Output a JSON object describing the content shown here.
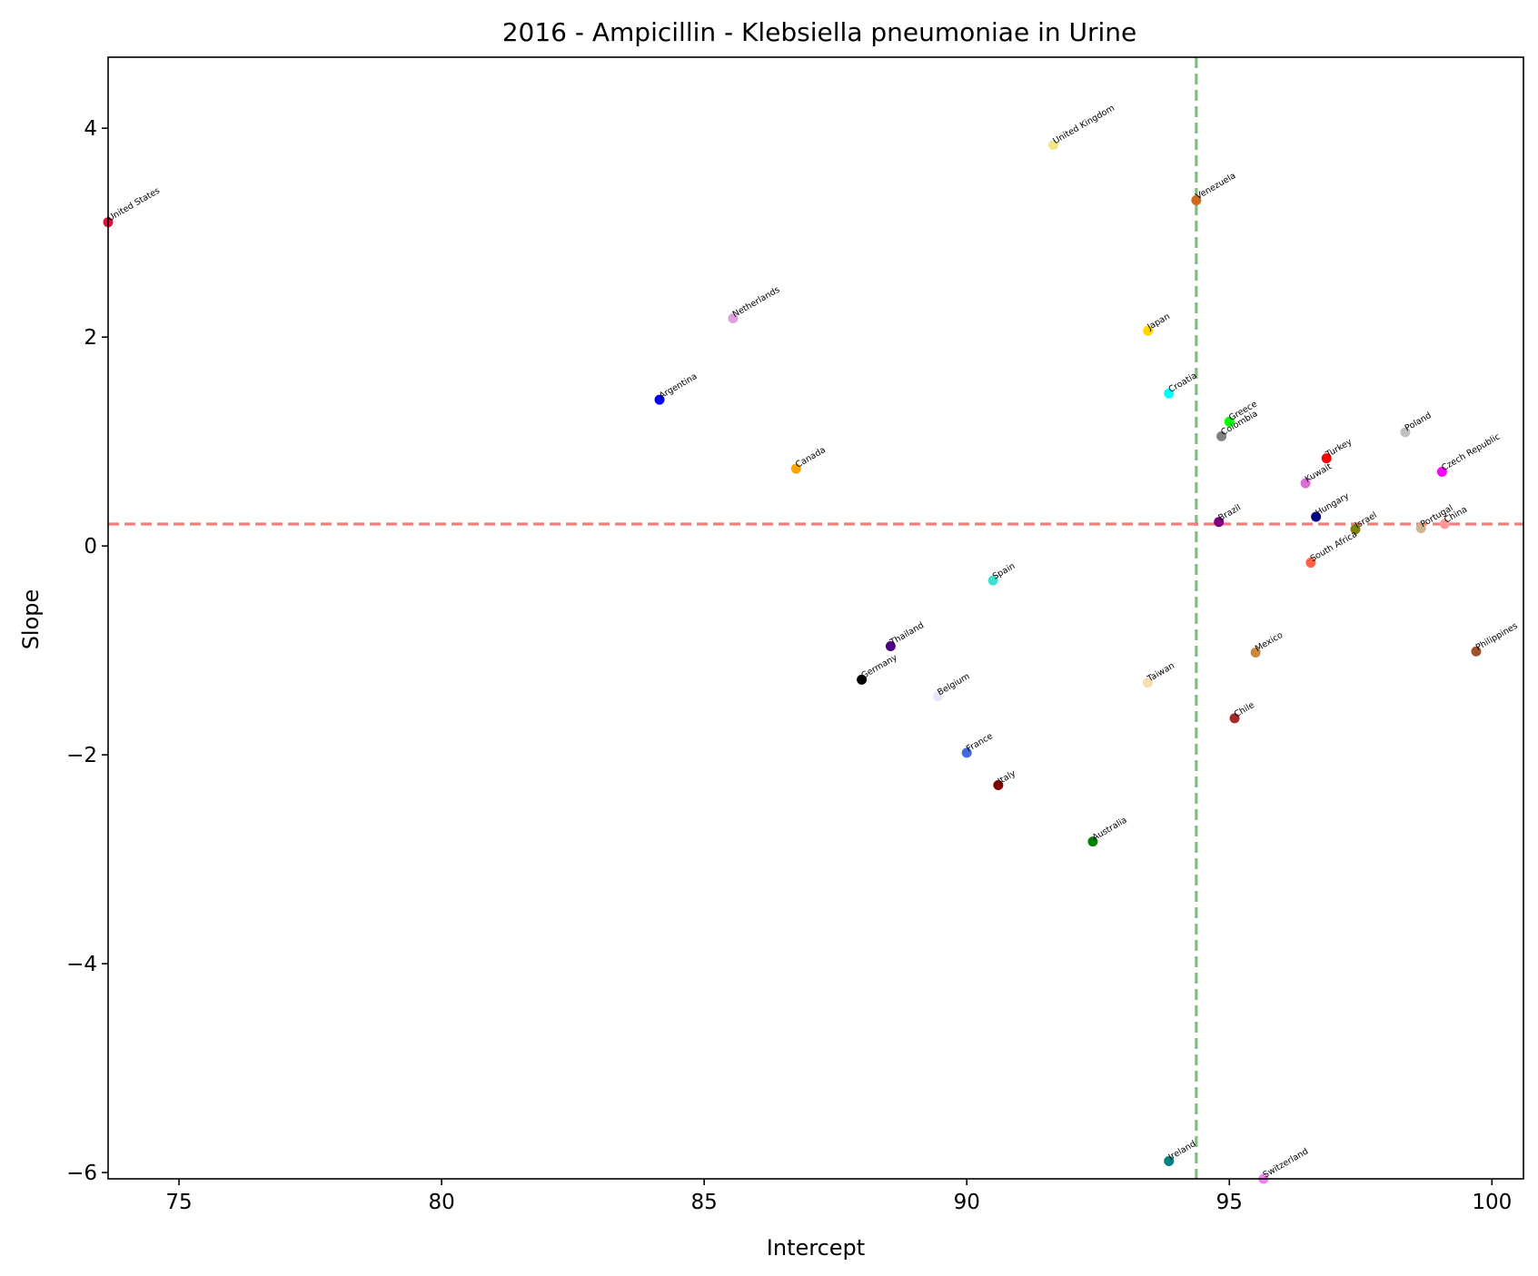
{
  "chart_data": {
    "type": "scatter",
    "title": "2016 - Ampicillin - Klebsiella pneumoniae in Urine",
    "xlabel": "Intercept",
    "ylabel": "Slope",
    "xlim": [
      73.65,
      100.6
    ],
    "ylim": [
      -6.06,
      4.68
    ],
    "x_ticks": [
      75,
      80,
      85,
      90,
      95,
      100
    ],
    "x_tick_labels": [
      "75",
      "80",
      "85",
      "90",
      "95",
      "100"
    ],
    "y_ticks": [
      -6,
      -4,
      -2,
      0,
      2,
      4
    ],
    "y_tick_labels": [
      "−6",
      "−4",
      "−2",
      "0",
      "2",
      "4"
    ],
    "grid": false,
    "reference_lines": {
      "vertical_x": 94.37,
      "vertical_color": "#7fbf7f",
      "horizontal_y": 0.21,
      "horizontal_color": "#f08080"
    },
    "points": [
      {
        "label": "United States",
        "x": 73.65,
        "y": 3.1,
        "color": "#dc143c"
      },
      {
        "label": "United Kingdom",
        "x": 91.65,
        "y": 3.84,
        "color": "#f0e68c"
      },
      {
        "label": "Venezuela",
        "x": 94.37,
        "y": 3.31,
        "color": "#d2691e"
      },
      {
        "label": "Netherlands",
        "x": 85.55,
        "y": 2.18,
        "color": "#dda0dd"
      },
      {
        "label": "Japan",
        "x": 93.45,
        "y": 2.06,
        "color": "#ffd700"
      },
      {
        "label": "Argentina",
        "x": 84.15,
        "y": 1.4,
        "color": "#0000ff"
      },
      {
        "label": "Croatia",
        "x": 93.85,
        "y": 1.46,
        "color": "#00ffff"
      },
      {
        "label": "Greece",
        "x": 95.0,
        "y": 1.19,
        "color": "#00ff00"
      },
      {
        "label": "Colombia",
        "x": 94.85,
        "y": 1.05,
        "color": "#808080"
      },
      {
        "label": "Poland",
        "x": 98.35,
        "y": 1.09,
        "color": "#c0c0c0"
      },
      {
        "label": "Canada",
        "x": 86.75,
        "y": 0.74,
        "color": "#ffa500"
      },
      {
        "label": "Turkey",
        "x": 96.85,
        "y": 0.84,
        "color": "#ff0000"
      },
      {
        "label": "Czech Republic",
        "x": 99.05,
        "y": 0.71,
        "color": "#ff00ff"
      },
      {
        "label": "Kuwait",
        "x": 96.45,
        "y": 0.6,
        "color": "#da70d6"
      },
      {
        "label": "Hungary",
        "x": 96.65,
        "y": 0.28,
        "color": "#000080"
      },
      {
        "label": "Brazil",
        "x": 94.8,
        "y": 0.23,
        "color": "#800080"
      },
      {
        "label": "Israel",
        "x": 97.4,
        "y": 0.16,
        "color": "#808000"
      },
      {
        "label": "Portugal",
        "x": 98.65,
        "y": 0.17,
        "color": "#d2b48c"
      },
      {
        "label": "China",
        "x": 99.1,
        "y": 0.21,
        "color": "#ff9999"
      },
      {
        "label": "South Africa",
        "x": 96.55,
        "y": -0.16,
        "color": "#ff6347"
      },
      {
        "label": "Spain",
        "x": 90.5,
        "y": -0.33,
        "color": "#40e0d0"
      },
      {
        "label": "Thailand",
        "x": 88.55,
        "y": -0.96,
        "color": "#4b0082"
      },
      {
        "label": "Mexico",
        "x": 95.5,
        "y": -1.02,
        "color": "#cd853f"
      },
      {
        "label": "Philippines",
        "x": 99.7,
        "y": -1.01,
        "color": "#a0522d"
      },
      {
        "label": "Germany",
        "x": 88.0,
        "y": -1.28,
        "color": "#000000"
      },
      {
        "label": "Taiwan",
        "x": 93.45,
        "y": -1.31,
        "color": "#f5deb3"
      },
      {
        "label": "Belgium",
        "x": 89.45,
        "y": -1.44,
        "color": "#e6e6fa"
      },
      {
        "label": "Chile",
        "x": 95.1,
        "y": -1.65,
        "color": "#a52a2a"
      },
      {
        "label": "France",
        "x": 90.0,
        "y": -1.98,
        "color": "#4169e1"
      },
      {
        "label": "Italy",
        "x": 90.6,
        "y": -2.29,
        "color": "#800000"
      },
      {
        "label": "Australia",
        "x": 92.4,
        "y": -2.83,
        "color": "#008000"
      },
      {
        "label": "Ireland",
        "x": 93.85,
        "y": -5.89,
        "color": "#008080"
      },
      {
        "label": "Switzerland",
        "x": 95.65,
        "y": -6.06,
        "color": "#ee82ee"
      }
    ]
  }
}
